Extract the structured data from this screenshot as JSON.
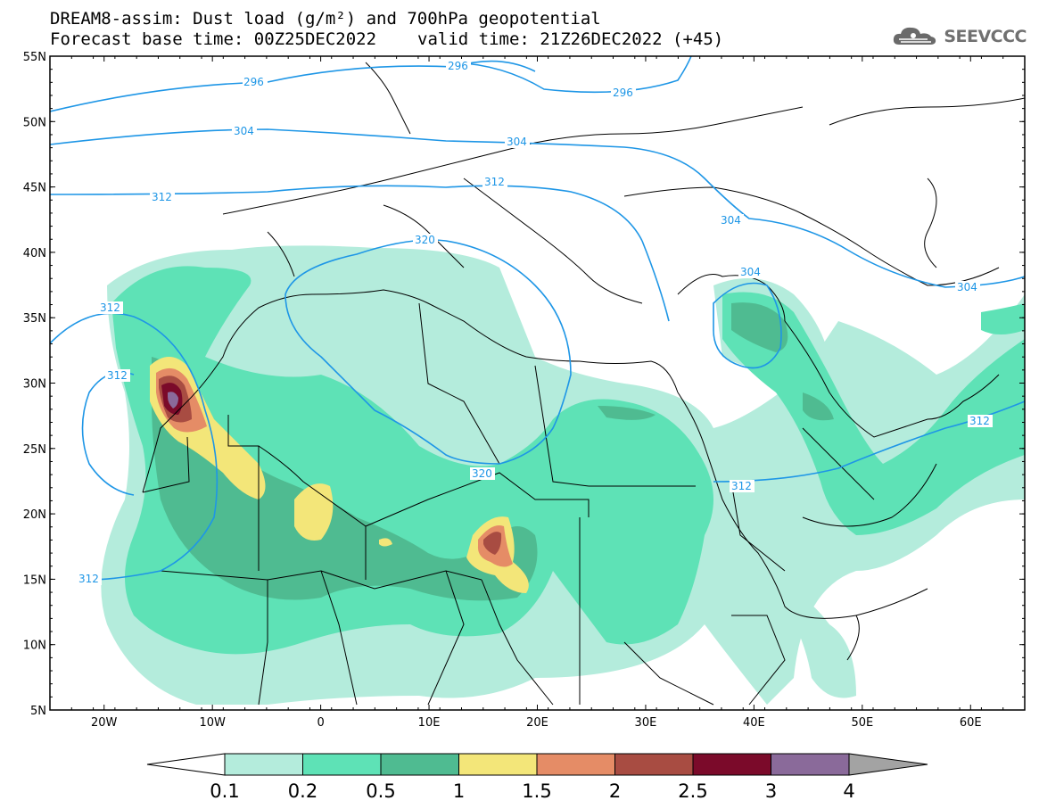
{
  "title_line1": "DREAM8-assim: Dust load (g/m²) and 700hPa geopotential",
  "title_base": "Forecast base time: 00Z25DEC2022",
  "title_valid": "valid time: 21Z26DEC2022 (+45)",
  "logo_text": "SEEVCCC",
  "lat_labels": [
    "55N",
    "50N",
    "45N",
    "40N",
    "35N",
    "30N",
    "25N",
    "20N",
    "15N",
    "10N",
    "5N"
  ],
  "lon_labels": [
    "20W",
    "10W",
    "0",
    "10E",
    "20E",
    "30E",
    "40E",
    "50E",
    "60E"
  ],
  "contour_labels": [
    "296",
    "296",
    "296",
    "304",
    "304",
    "304",
    "304",
    "304",
    "312",
    "312",
    "312",
    "312",
    "312",
    "320",
    "320"
  ],
  "colorbar": {
    "labels": [
      "0.1",
      "0.2",
      "0.5",
      "1",
      "1.5",
      "2",
      "2.5",
      "3",
      "4"
    ],
    "colors": [
      "#ffffff",
      "#b4ecdc",
      "#5ee2b6",
      "#4fbb91",
      "#f3e679",
      "#e58c66",
      "#a84c42",
      "#7b0a2a",
      "#8a6a9a",
      "#a3a3a3"
    ]
  },
  "colors": {
    "contour": "#1e96e6",
    "border": "#000000"
  }
}
